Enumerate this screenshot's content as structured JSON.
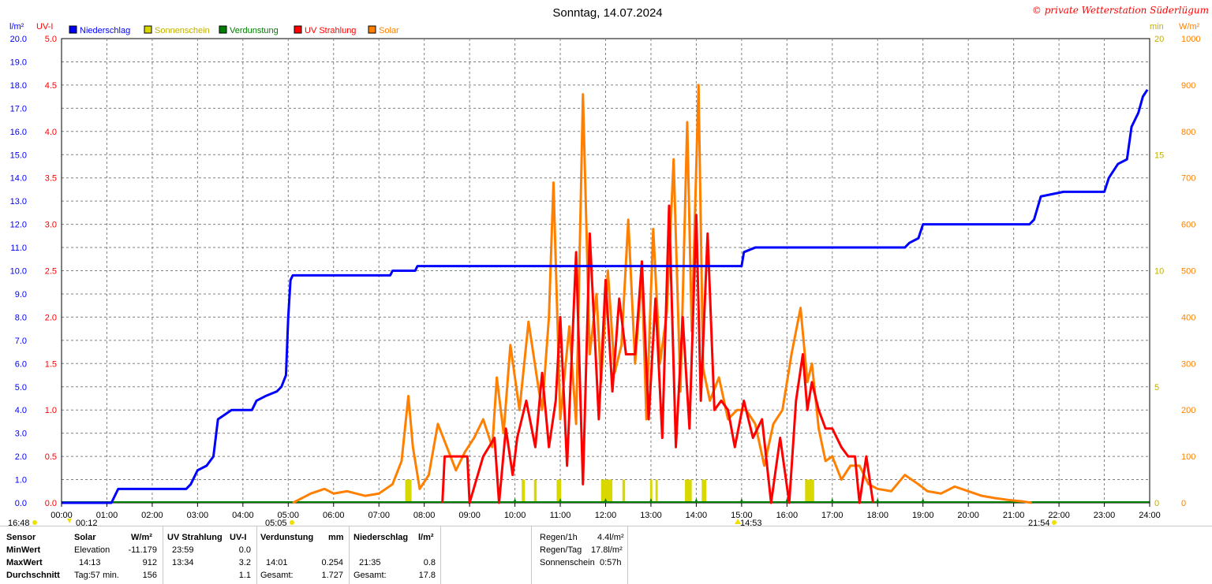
{
  "title": "Sonntag, 14.07.2024",
  "copyright": "© private Wetterstation Süderlügum",
  "axes": {
    "left1_unit": "l/m²",
    "left2_unit": "UV-I",
    "right1_unit": "min",
    "right2_unit": "W/m²",
    "left1_ticks": [
      "0.0",
      "1.0",
      "2.0",
      "3.0",
      "4.0",
      "5.0",
      "6.0",
      "7.0",
      "8.0",
      "9.0",
      "10.0",
      "11.0",
      "12.0",
      "13.0",
      "14.0",
      "15.0",
      "16.0",
      "17.0",
      "18.0",
      "19.0",
      "20.0"
    ],
    "left2_ticks": [
      "0.0",
      "0.5",
      "1.0",
      "1.5",
      "2.0",
      "2.5",
      "3.0",
      "3.5",
      "4.0",
      "4.5",
      "5.0"
    ],
    "right1_ticks": [
      "0",
      "5",
      "10",
      "15",
      "20"
    ],
    "right2_ticks": [
      "0",
      "100",
      "200",
      "300",
      "400",
      "500",
      "600",
      "700",
      "800",
      "900",
      "1000"
    ],
    "x_ticks": [
      "00:00",
      "01:00",
      "02:00",
      "03:00",
      "04:00",
      "05:00",
      "06:00",
      "07:00",
      "08:00",
      "09:00",
      "10:00",
      "11:00",
      "12:00",
      "13:00",
      "14:00",
      "15:00",
      "16:00",
      "17:00",
      "18:00",
      "19:00",
      "20:00",
      "21:00",
      "22:00",
      "23:00",
      "24:00"
    ]
  },
  "legend": [
    {
      "label": "Niederschlag",
      "color": "#0000ff"
    },
    {
      "label": "Sonnenschein",
      "color": "#d8d800"
    },
    {
      "label": "Verdunstung",
      "color": "#008000"
    },
    {
      "label": "UV Strahlung",
      "color": "#ff0000"
    },
    {
      "label": "Solar",
      "color": "#ff8000"
    }
  ],
  "markers": {
    "moonrise": "16:48",
    "moonset": "00:12",
    "sunrise": "05:05",
    "solar_noon": "14:53",
    "sunset": "21:54"
  },
  "chart_data": {
    "type": "line",
    "x_range": [
      "00:00",
      "24:00"
    ],
    "grid": true,
    "series": [
      {
        "name": "Niederschlag",
        "unit": "l/m²",
        "color": "#0000ff",
        "x": [
          0,
          1.1,
          1.25,
          2.75,
          2.85,
          3.0,
          3.2,
          3.35,
          3.45,
          3.75,
          4.2,
          4.3,
          4.5,
          4.75,
          4.85,
          4.95,
          5.0,
          5.05,
          5.1,
          7.25,
          7.3,
          7.8,
          7.85,
          15.0,
          15.05,
          15.3,
          18.6,
          18.7,
          18.9,
          19.0,
          21.35,
          21.45,
          21.6,
          22.1,
          23.0,
          23.1,
          23.3,
          23.5,
          23.6,
          23.75,
          23.85,
          23.95
        ],
        "y": [
          0,
          0,
          0.6,
          0.6,
          0.8,
          1.4,
          1.6,
          2.0,
          3.6,
          4.0,
          4.0,
          4.4,
          4.6,
          4.8,
          5.0,
          5.5,
          8.0,
          9.6,
          9.8,
          9.8,
          10.0,
          10.0,
          10.2,
          10.2,
          10.8,
          11.0,
          11.0,
          11.2,
          11.4,
          12.0,
          12.0,
          12.2,
          13.2,
          13.4,
          13.4,
          14.0,
          14.6,
          14.8,
          16.2,
          16.8,
          17.5,
          17.8
        ]
      },
      {
        "name": "Solar",
        "unit": "W/m²",
        "color": "#ff8000",
        "x": [
          5.1,
          5.5,
          5.8,
          6.0,
          6.3,
          6.7,
          7.0,
          7.3,
          7.5,
          7.65,
          7.75,
          7.9,
          8.1,
          8.3,
          8.5,
          8.7,
          8.9,
          9.1,
          9.3,
          9.5,
          9.6,
          9.75,
          9.9,
          10.1,
          10.3,
          10.5,
          10.6,
          10.75,
          10.85,
          11.0,
          11.2,
          11.35,
          11.5,
          11.65,
          11.8,
          11.9,
          12.05,
          12.2,
          12.35,
          12.5,
          12.65,
          12.8,
          12.9,
          13.05,
          13.2,
          13.35,
          13.5,
          13.65,
          13.8,
          13.9,
          14.05,
          14.15,
          14.3,
          14.5,
          14.7,
          14.9,
          15.1,
          15.3,
          15.5,
          15.7,
          15.9,
          16.1,
          16.3,
          16.45,
          16.55,
          16.7,
          16.85,
          17.0,
          17.2,
          17.4,
          17.6,
          17.8,
          18.0,
          18.3,
          18.6,
          18.9,
          19.1,
          19.4,
          19.7,
          20.0,
          20.3,
          20.6,
          20.9,
          21.2,
          21.4
        ],
        "y": [
          0,
          20,
          30,
          20,
          25,
          15,
          20,
          40,
          90,
          230,
          120,
          30,
          60,
          170,
          120,
          70,
          110,
          140,
          180,
          120,
          270,
          150,
          340,
          200,
          390,
          260,
          200,
          400,
          690,
          180,
          380,
          170,
          880,
          320,
          450,
          260,
          500,
          280,
          340,
          610,
          300,
          490,
          180,
          590,
          300,
          410,
          740,
          240,
          820,
          370,
          900,
          290,
          220,
          270,
          180,
          200,
          200,
          170,
          80,
          170,
          200,
          320,
          420,
          260,
          300,
          160,
          90,
          100,
          50,
          80,
          80,
          40,
          30,
          25,
          60,
          40,
          25,
          20,
          35,
          25,
          15,
          10,
          6,
          3,
          0
        ]
      },
      {
        "name": "UV Strahlung",
        "unit": "UV-I",
        "color": "#ff0000",
        "x": [
          8.4,
          8.45,
          8.7,
          8.95,
          9.0,
          9.3,
          9.55,
          9.65,
          9.8,
          9.95,
          10.05,
          10.25,
          10.45,
          10.6,
          10.75,
          10.9,
          11.0,
          11.15,
          11.35,
          11.5,
          11.65,
          11.85,
          12.0,
          12.15,
          12.3,
          12.45,
          12.65,
          12.8,
          12.95,
          13.1,
          13.25,
          13.4,
          13.55,
          13.7,
          13.85,
          14.0,
          14.1,
          14.25,
          14.4,
          14.55,
          14.7,
          14.85,
          15.05,
          15.25,
          15.45,
          15.65,
          15.85,
          16.05,
          16.2,
          16.35,
          16.45,
          16.55,
          16.7,
          16.85,
          17.0,
          17.2,
          17.35,
          17.5,
          17.6,
          17.75,
          17.9
        ],
        "y": [
          0,
          0.5,
          0.5,
          0.5,
          0,
          0.5,
          0.7,
          0,
          0.8,
          0.3,
          0.7,
          1.1,
          0.6,
          1.4,
          0.6,
          1.1,
          2.0,
          0.4,
          2.7,
          0.2,
          2.9,
          0.9,
          2.4,
          1.2,
          2.2,
          1.6,
          1.6,
          2.6,
          0.9,
          2.2,
          0.7,
          3.2,
          0.6,
          2.0,
          0.8,
          3.1,
          1.1,
          2.9,
          1.0,
          1.1,
          1.0,
          0.6,
          1.1,
          0.7,
          0.9,
          0,
          0.7,
          0,
          1.1,
          1.6,
          1.0,
          1.3,
          1.0,
          0.8,
          0.8,
          0.6,
          0.5,
          0.5,
          0,
          0.5,
          0
        ]
      },
      {
        "name": "Sonnenschein",
        "unit": "min",
        "color": "#d8d800",
        "x": [
          7.58,
          7.72,
          10.15,
          10.22,
          10.42,
          10.48,
          10.92,
          11.02,
          11.9,
          12.15,
          12.37,
          12.43,
          12.98,
          13.03,
          13.1,
          13.15,
          13.75,
          13.9,
          14.12,
          14.22,
          16.4,
          16.6
        ],
        "y": [
          1,
          1,
          1,
          1,
          1,
          1,
          1,
          1,
          1,
          1,
          1,
          1,
          1,
          1,
          1,
          1,
          1,
          1,
          1,
          1,
          1,
          1
        ]
      },
      {
        "name": "Verdunstung",
        "unit": "mm",
        "color": "#008000",
        "x": [
          10.0,
          11.0,
          12.0,
          13.0,
          14.0,
          15.0,
          16.0,
          17.0,
          18.0,
          19.0
        ],
        "y": [
          0.02,
          0.05,
          0.06,
          0.05,
          0.06,
          0.05,
          0.03,
          0.04,
          0.02,
          0.01
        ]
      }
    ]
  },
  "table": {
    "headers": {
      "sensor": "Sensor",
      "solar": "Solar",
      "solar_unit": "W/m²",
      "uv": "UV Strahlung",
      "uv_unit": "UV-I",
      "verd": "Verdunstung",
      "verd_unit": "mm",
      "nied": "Niederschlag",
      "nied_unit": "l/m²"
    },
    "rows": [
      {
        "label": "MinWert",
        "solar_time": "Elevation",
        "solar_val": "-11.179",
        "uv_time": "23:59",
        "uv_val": "0.0",
        "verd_time": "",
        "verd_val": "",
        "nied_time": "",
        "nied_val": ""
      },
      {
        "label": "MaxWert",
        "solar_time": "14:13",
        "solar_val": "912",
        "uv_time": "13:34",
        "uv_val": "3.2",
        "verd_time": "14:01",
        "verd_val": "0.254",
        "nied_time": "21:35",
        "nied_val": "0.8"
      },
      {
        "label": "Durchschnitt",
        "solar_time": "Tag:57 min.",
        "solar_val": "156",
        "uv_time": "",
        "uv_val": "1.1",
        "verd_time": "Gesamt:",
        "verd_val": "1.727",
        "nied_time": "Gesamt:",
        "nied_val": "17.8"
      }
    ],
    "summary": [
      {
        "label": "Regen/1h",
        "value": "4.4l/m²"
      },
      {
        "label": "Regen/Tag",
        "value": "17.8l/m²"
      },
      {
        "label": "Sonnenschein",
        "value": "0:57h"
      }
    ]
  }
}
